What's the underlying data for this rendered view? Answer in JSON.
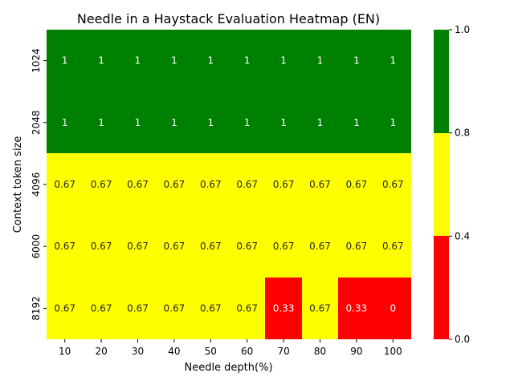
{
  "chart_data": {
    "type": "heatmap",
    "title": "Needle in a Haystack Evaluation Heatmap (EN)",
    "xlabel": "Needle depth(%)",
    "ylabel": "Context token size",
    "x_categories": [
      "10",
      "20",
      "30",
      "40",
      "50",
      "60",
      "70",
      "80",
      "90",
      "100"
    ],
    "y_categories": [
      "1024",
      "2048",
      "4096",
      "6000",
      "8192"
    ],
    "values": [
      [
        1,
        1,
        1,
        1,
        1,
        1,
        1,
        1,
        1,
        1
      ],
      [
        1,
        1,
        1,
        1,
        1,
        1,
        1,
        1,
        1,
        1
      ],
      [
        0.67,
        0.67,
        0.67,
        0.67,
        0.67,
        0.67,
        0.67,
        0.67,
        0.67,
        0.67
      ],
      [
        0.67,
        0.67,
        0.67,
        0.67,
        0.67,
        0.67,
        0.67,
        0.67,
        0.67,
        0.67
      ],
      [
        0.67,
        0.67,
        0.67,
        0.67,
        0.67,
        0.67,
        0.33,
        0.67,
        0.33,
        0
      ]
    ],
    "cell_labels": [
      [
        "1",
        "1",
        "1",
        "1",
        "1",
        "1",
        "1",
        "1",
        "1",
        "1"
      ],
      [
        "1",
        "1",
        "1",
        "1",
        "1",
        "1",
        "1",
        "1",
        "1",
        "1"
      ],
      [
        "0.67",
        "0.67",
        "0.67",
        "0.67",
        "0.67",
        "0.67",
        "0.67",
        "0.67",
        "0.67",
        "0.67"
      ],
      [
        "0.67",
        "0.67",
        "0.67",
        "0.67",
        "0.67",
        "0.67",
        "0.67",
        "0.67",
        "0.67",
        "0.67"
      ],
      [
        "0.67",
        "0.67",
        "0.67",
        "0.67",
        "0.67",
        "0.67",
        "0.33",
        "0.67",
        "0.33",
        "0"
      ]
    ],
    "colorbar": {
      "bins": [
        {
          "from": 0.0,
          "to": 0.4,
          "color": "#ff0000"
        },
        {
          "from": 0.4,
          "to": 0.8,
          "color": "#ffff00"
        },
        {
          "from": 0.8,
          "to": 1.0,
          "color": "#008000"
        }
      ],
      "ticks": [
        "0.0",
        "0.4",
        "0.8",
        "1.0"
      ]
    },
    "legend_placement": "right"
  }
}
